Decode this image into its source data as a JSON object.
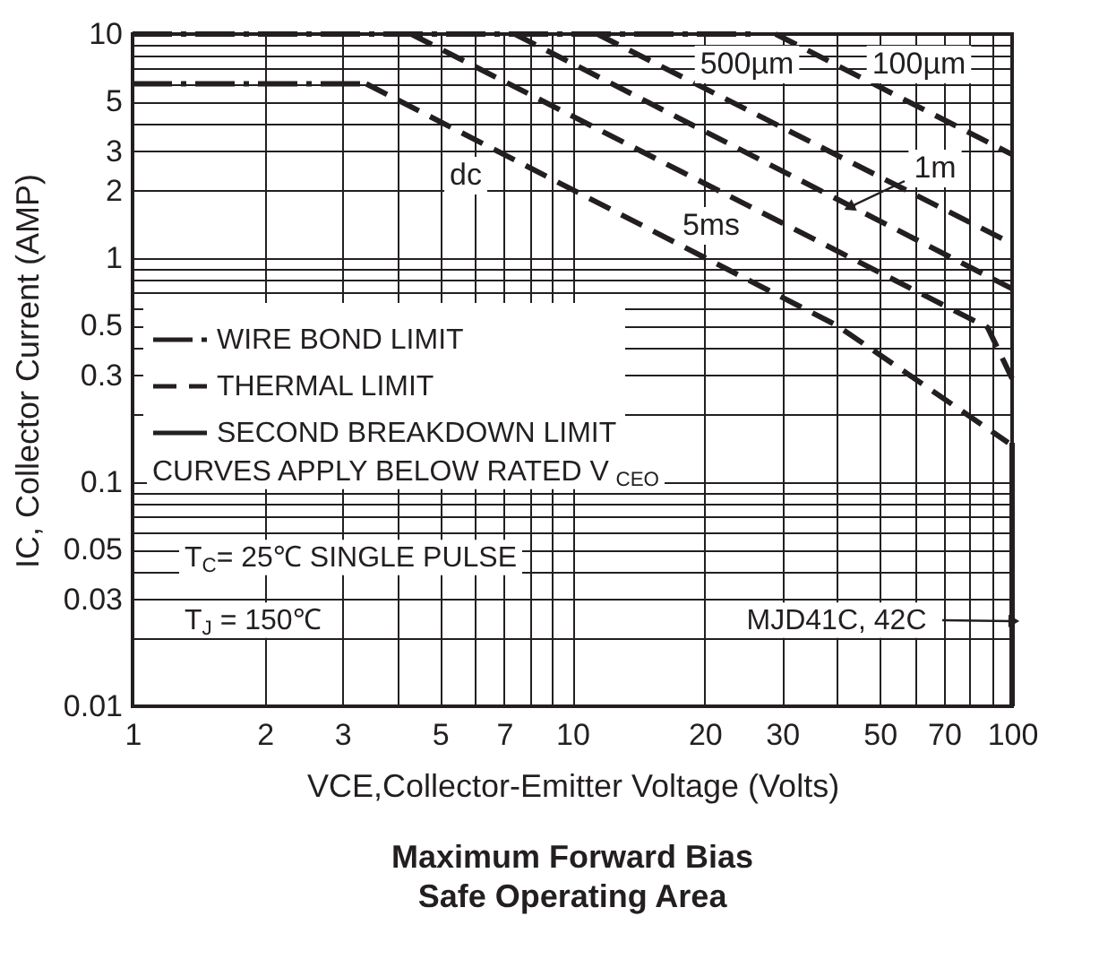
{
  "chart_data": {
    "type": "line",
    "title": "Maximum Forward Bias Safe Operating Area",
    "xlabel": "VCE,Collector-Emitter Voltage (Volts)",
    "ylabel": "IC, Collector  Current (AMP)",
    "log": "xy",
    "xlim": [
      1,
      100
    ],
    "ylim": [
      0.01,
      10
    ],
    "xticks": [
      1,
      2,
      3,
      {
        "value": 4,
        "label": null
      },
      5,
      {
        "value": 6,
        "label": null
      },
      7,
      {
        "value": 8,
        "label": null
      },
      {
        "value": 9,
        "label": null
      },
      10,
      20,
      30,
      {
        "value": 40,
        "label": null
      },
      50,
      {
        "value": 60,
        "label": null
      },
      70,
      {
        "value": 80,
        "label": null
      },
      {
        "value": 90,
        "label": null
      },
      100
    ],
    "yticks": [
      0.01,
      {
        "value": 0.02,
        "label": null
      },
      0.03,
      {
        "value": 0.04,
        "label": null
      },
      0.05,
      {
        "value": 0.06,
        "label": null
      },
      {
        "value": 0.07,
        "label": null
      },
      {
        "value": 0.08,
        "label": null
      },
      {
        "value": 0.09,
        "label": null
      },
      0.1,
      {
        "value": 0.2,
        "label": null
      },
      0.3,
      {
        "value": 0.4,
        "label": null
      },
      0.5,
      {
        "value": 0.6,
        "label": null
      },
      {
        "value": 0.7,
        "label": null
      },
      {
        "value": 0.8,
        "label": null
      },
      {
        "value": 0.9,
        "label": null
      },
      1,
      2,
      3,
      {
        "value": 4,
        "label": null
      },
      5,
      {
        "value": 6,
        "label": null
      },
      {
        "value": 7,
        "label": null
      },
      {
        "value": 8,
        "label": null
      },
      {
        "value": 9,
        "label": null
      },
      10
    ],
    "grid": true,
    "legend": "left",
    "series": [
      {
        "name": "WIRE BOND LIMIT",
        "color": "#231f20",
        "line_style": "dashdot",
        "x": [
          1,
          25.6
        ],
        "values": [
          10,
          10
        ]
      },
      {
        "color": "#231f20",
        "line_style": "dashdot",
        "x": [
          1,
          3.4
        ],
        "values": [
          6,
          6
        ]
      },
      {
        "name": "THERMAL LIMIT",
        "color": "#231f20",
        "line_style": "dashed",
        "x": [
          29,
          100
        ],
        "values": [
          10,
          2.9
        ]
      },
      {
        "color": "#231f20",
        "line_style": "dashed",
        "x": [
          11.4,
          100
        ],
        "values": [
          10,
          1.16
        ]
      },
      {
        "color": "#231f20",
        "line_style": "dashed",
        "x": [
          7.4,
          100
        ],
        "values": [
          10,
          0.73
        ]
      },
      {
        "color": "#231f20",
        "line_style": "dashed",
        "x": [
          4.3,
          88,
          100
        ],
        "values": [
          10,
          0.49,
          0.29
        ]
      },
      {
        "color": "#231f20",
        "line_style": "dashed",
        "x": [
          3.4,
          40,
          98
        ],
        "values": [
          6,
          0.5,
          0.15
        ]
      },
      {
        "name": "SECOND BREAKDOWN LIMIT",
        "color": "#231f20",
        "line_style": "solid",
        "x": [
          100,
          100
        ],
        "values": [
          0.15,
          0.01
        ]
      }
    ],
    "annotations": [
      "dc",
      "5ms",
      "500µm",
      "100µm",
      {
        "text": "1m",
        "x": 43,
        "y": 1.7
      },
      {
        "text": "MJD41C, 42C",
        "x": 100,
        "y": 0.024
      },
      "CURVES APPLY BELOW RATED V$_{CEO}$",
      "T$_{C}$= 25℃ SINGLE PULSE",
      "T$_{J}$ = 150℃"
    ]
  }
}
